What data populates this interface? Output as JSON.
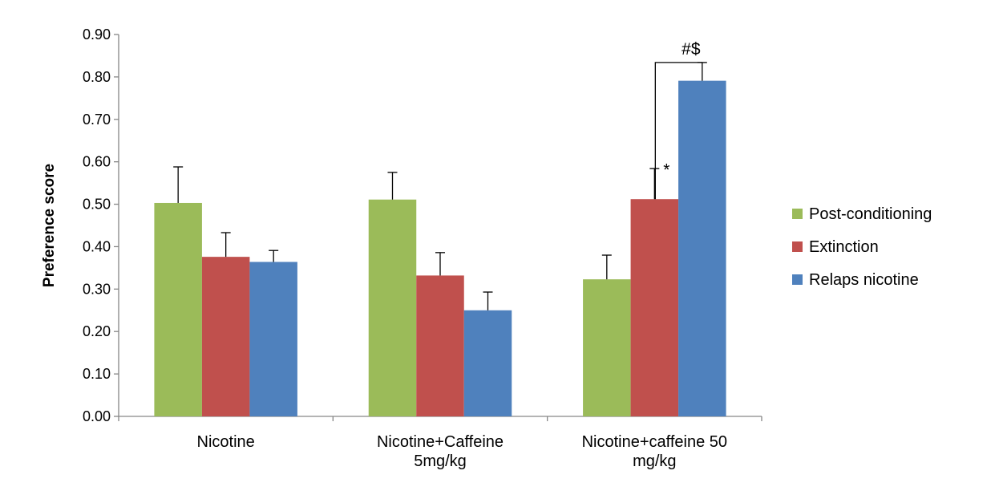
{
  "chart_data": {
    "type": "bar",
    "title": "",
    "xlabel": "",
    "ylabel": "Preference score",
    "ylim": [
      0,
      0.9
    ],
    "yticks": [
      "0.00",
      "0.10",
      "0.20",
      "0.30",
      "0.40",
      "0.50",
      "0.60",
      "0.70",
      "0.80",
      "0.90"
    ],
    "categories": [
      [
        "Nicotine"
      ],
      [
        "Nicotine+Caffeine",
        "5mg/kg"
      ],
      [
        "Nicotine+caffeine 50",
        "mg/kg"
      ]
    ],
    "series": [
      {
        "name": "Post-conditioning",
        "color": "#9BBB59",
        "values": [
          0.503,
          0.511,
          0.323
        ],
        "errors": [
          0.085,
          0.064,
          0.057
        ]
      },
      {
        "name": "Extinction",
        "color": "#C0504D",
        "values": [
          0.376,
          0.332,
          0.512
        ],
        "errors": [
          0.057,
          0.054,
          0.072
        ]
      },
      {
        "name": "Relaps nicotine",
        "color": "#4F81BD",
        "values": [
          0.364,
          0.25,
          0.791
        ],
        "errors": [
          0.027,
          0.043,
          0.043
        ]
      }
    ],
    "legend_position": "right",
    "grid": false,
    "annotations": [
      {
        "text": "*",
        "category_index": 2,
        "series_index": 1
      },
      {
        "text": "#$",
        "category_index": 2,
        "series_index": 2
      }
    ]
  }
}
